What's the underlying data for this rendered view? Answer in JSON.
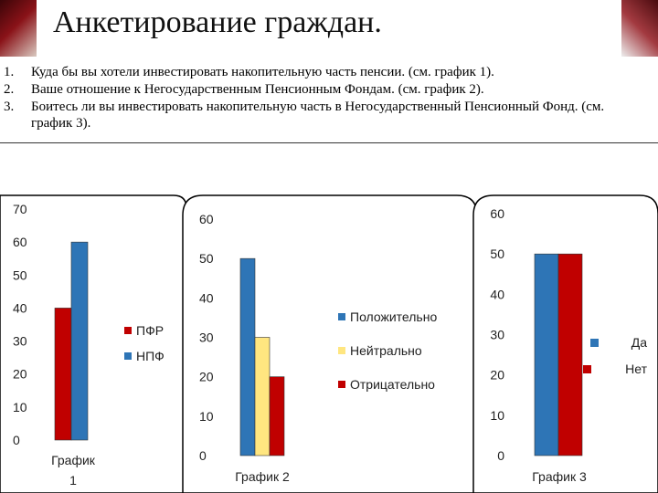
{
  "slide_title": "Анкетирование граждан.",
  "questions": [
    {
      "num": "1.",
      "text": "Куда бы вы хотели инвестировать накопительную часть пенсии. (см. график 1)."
    },
    {
      "num": "2.",
      "text": "Ваше отношение к Негосударственным Пенсионным Фондам. (см. график 2)."
    },
    {
      "num": "3.",
      "text": "Боитесь ли вы инвестировать накопительную часть в Негосударственный Пенсионный Фонд. (см. график 3)."
    }
  ],
  "chart_data": [
    {
      "type": "bar",
      "title": "График 1",
      "yticks": [
        "0",
        "10",
        "20",
        "30",
        "40",
        "50",
        "60",
        "70"
      ],
      "ylim": [
        0,
        70
      ],
      "series": [
        {
          "name": "ПФР",
          "value": 40,
          "color": "#c00000"
        },
        {
          "name": "НПФ",
          "value": 60,
          "color": "#2e75b6"
        }
      ]
    },
    {
      "type": "bar",
      "title": "График 2",
      "yticks": [
        "0",
        "10",
        "20",
        "30",
        "40",
        "50",
        "60"
      ],
      "ylim": [
        0,
        60
      ],
      "series": [
        {
          "name": "Положительно",
          "value": 50,
          "color": "#2e75b6"
        },
        {
          "name": "Нейтрально",
          "value": 30,
          "color": "#ffe680"
        },
        {
          "name": "Отрицательно",
          "value": 20,
          "color": "#c00000"
        }
      ]
    },
    {
      "type": "bar",
      "title": "График 3",
      "yticks": [
        "0",
        "10",
        "20",
        "30",
        "40",
        "50",
        "60"
      ],
      "ylim": [
        0,
        60
      ],
      "series": [
        {
          "name": "Да",
          "value": 50,
          "color": "#2e75b6"
        },
        {
          "name": "Нет",
          "value": 50,
          "color": "#c00000"
        }
      ]
    }
  ]
}
